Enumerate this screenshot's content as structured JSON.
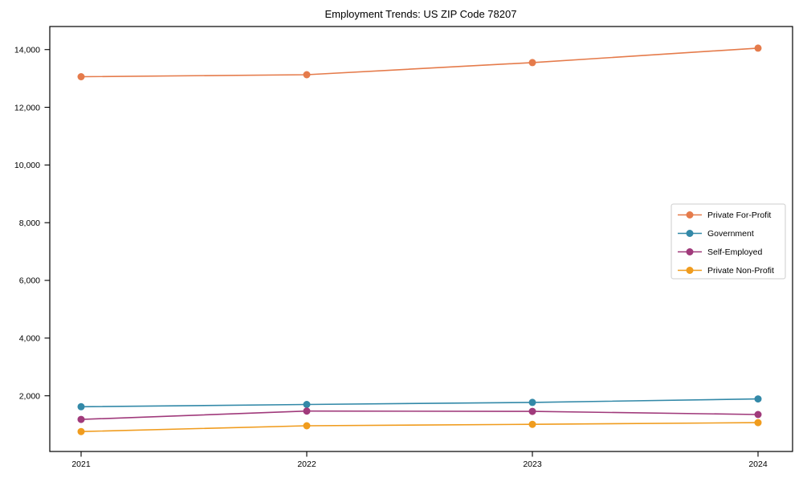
{
  "chart_data": {
    "type": "line",
    "title": "Employment Trends: US ZIP Code 78207",
    "xlabel": "",
    "ylabel": "",
    "categories": [
      "2021",
      "2022",
      "2023",
      "2024"
    ],
    "series": [
      {
        "name": "Private For-Profit",
        "color": "#e57b4b",
        "values": [
          13060,
          13130,
          13550,
          14050
        ]
      },
      {
        "name": "Government",
        "color": "#3389a8",
        "values": [
          1620,
          1700,
          1770,
          1890
        ]
      },
      {
        "name": "Self-Employed",
        "color": "#a03a7b",
        "values": [
          1180,
          1470,
          1460,
          1350
        ]
      },
      {
        "name": "Private Non-Profit",
        "color": "#f09c1e",
        "values": [
          760,
          960,
          1010,
          1070
        ]
      }
    ],
    "ylim": [
      70,
      14800
    ],
    "yticks": [
      2000,
      4000,
      6000,
      8000,
      10000,
      12000,
      14000
    ],
    "ytick_format": "comma",
    "grid": false,
    "marker": "circle",
    "legend_position": "center right",
    "legend_border_color": "#cccccc",
    "axis_color": "#000000"
  }
}
